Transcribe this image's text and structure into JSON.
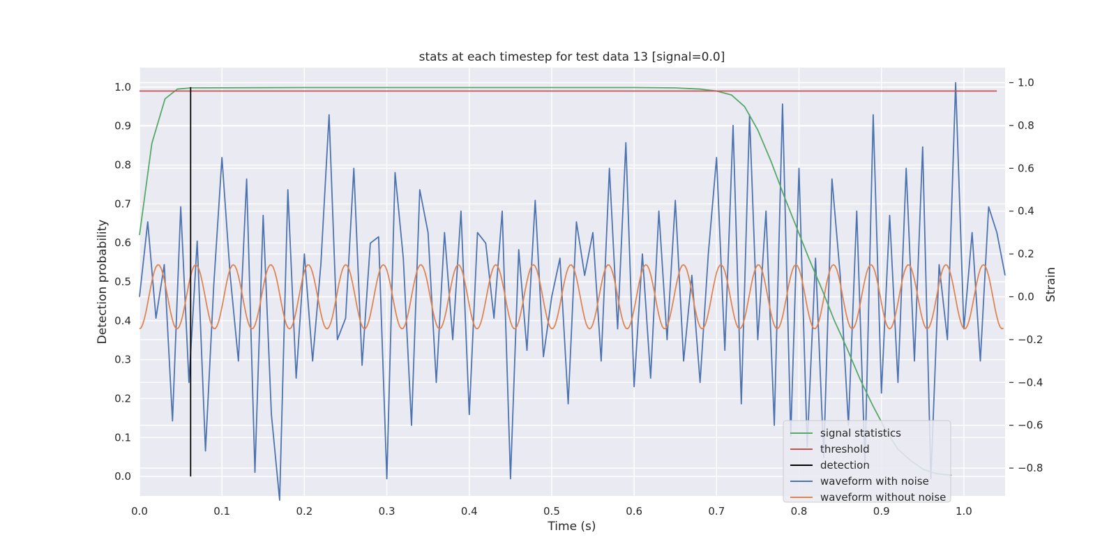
{
  "chart_data": {
    "type": "line",
    "title": "stats at each timestep for test data 13 [signal=0.0]",
    "xlabel": "Time (s)",
    "ylabel_left": "Detection probability",
    "ylabel_right": "Strain",
    "xlim": [
      0.0,
      1.05
    ],
    "ylim_left": [
      -0.05,
      1.05
    ],
    "ylim_right": [
      -0.93,
      1.07
    ],
    "x_ticks": [
      "0.0",
      "0.1",
      "0.2",
      "0.3",
      "0.4",
      "0.5",
      "0.6",
      "0.7",
      "0.8",
      "0.9",
      "1.0"
    ],
    "y_ticks_left": [
      "0.0",
      "0.1",
      "0.2",
      "0.3",
      "0.4",
      "0.5",
      "0.6",
      "0.7",
      "0.8",
      "0.9",
      "1.0"
    ],
    "y_ticks_right": [
      "−0.8",
      "−0.6",
      "−0.4",
      "−0.2",
      "0.0",
      "0.2",
      "0.4",
      "0.6",
      "0.8",
      "1.0"
    ],
    "grid": true,
    "legend_position": "bottom-right",
    "series": [
      {
        "name": "signal statistics",
        "axis": "left",
        "color": "#55a868",
        "x": [
          0.0,
          0.015,
          0.031,
          0.046,
          0.062,
          0.2,
          0.4,
          0.6,
          0.65,
          0.68,
          0.7,
          0.718,
          0.734,
          0.75,
          0.766,
          0.782,
          0.797,
          0.812,
          0.828,
          0.843,
          0.858,
          0.874,
          0.89,
          0.905,
          0.92,
          0.936,
          0.951,
          0.967,
          0.985
        ],
        "y": [
          0.62,
          0.855,
          0.97,
          0.995,
          0.998,
          0.999,
          0.999,
          0.999,
          0.998,
          0.995,
          0.99,
          0.98,
          0.95,
          0.89,
          0.81,
          0.72,
          0.64,
          0.56,
          0.48,
          0.4,
          0.33,
          0.25,
          0.18,
          0.12,
          0.07,
          0.04,
          0.018,
          0.007,
          0.003
        ]
      },
      {
        "name": "threshold",
        "axis": "left",
        "color": "#c44e52",
        "x": [
          0.0,
          1.04
        ],
        "y": [
          0.99,
          0.99
        ]
      },
      {
        "name": "detection",
        "axis": "left",
        "color": "#000000",
        "x": [
          0.062,
          0.062
        ],
        "y": [
          0.0,
          1.0
        ]
      },
      {
        "name": "waveform with noise",
        "axis": "right",
        "color": "#4c72b0",
        "x": [
          0.0,
          0.01,
          0.02,
          0.03,
          0.04,
          0.05,
          0.06,
          0.07,
          0.08,
          0.09,
          0.1,
          0.11,
          0.12,
          0.13,
          0.14,
          0.15,
          0.16,
          0.17,
          0.18,
          0.19,
          0.2,
          0.21,
          0.22,
          0.23,
          0.24,
          0.25,
          0.26,
          0.27,
          0.28,
          0.29,
          0.3,
          0.31,
          0.32,
          0.33,
          0.34,
          0.35,
          0.36,
          0.37,
          0.38,
          0.39,
          0.4,
          0.41,
          0.42,
          0.43,
          0.44,
          0.45,
          0.46,
          0.47,
          0.48,
          0.49,
          0.5,
          0.51,
          0.52,
          0.53,
          0.54,
          0.55,
          0.56,
          0.57,
          0.58,
          0.59,
          0.6,
          0.61,
          0.62,
          0.63,
          0.64,
          0.65,
          0.66,
          0.67,
          0.68,
          0.69,
          0.7,
          0.71,
          0.72,
          0.73,
          0.74,
          0.75,
          0.76,
          0.77,
          0.78,
          0.79,
          0.8,
          0.81,
          0.82,
          0.83,
          0.84,
          0.85,
          0.86,
          0.87,
          0.88,
          0.89,
          0.9,
          0.91,
          0.92,
          0.93,
          0.94,
          0.95,
          0.96,
          0.97,
          0.98,
          0.99,
          1.0,
          1.01,
          1.02,
          1.03,
          1.04,
          1.05
        ],
        "y": [
          0.0,
          0.35,
          -0.1,
          0.15,
          -0.58,
          0.42,
          -0.4,
          0.26,
          -0.72,
          0.05,
          0.65,
          0.1,
          -0.3,
          0.55,
          -0.82,
          0.38,
          -0.55,
          -0.95,
          0.5,
          -0.38,
          0.2,
          -0.3,
          0.15,
          0.85,
          -0.2,
          -0.1,
          0.6,
          -0.32,
          0.25,
          0.28,
          -0.85,
          0.58,
          0.18,
          -0.6,
          0.5,
          0.3,
          -0.4,
          0.3,
          -0.2,
          0.4,
          -0.55,
          0.3,
          0.25,
          -0.1,
          0.4,
          -0.85,
          0.22,
          -0.25,
          0.45,
          -0.28,
          0.0,
          0.18,
          -0.5,
          0.35,
          0.1,
          0.3,
          -0.3,
          0.6,
          -0.15,
          0.72,
          -0.42,
          0.2,
          -0.38,
          0.4,
          -0.2,
          0.45,
          -0.3,
          0.1,
          -0.4,
          0.2,
          0.65,
          -0.25,
          0.8,
          -0.5,
          0.85,
          -0.2,
          0.4,
          -0.6,
          0.9,
          -0.65,
          0.6,
          -0.7,
          0.18,
          -0.75,
          0.55,
          0.1,
          -0.6,
          0.4,
          -0.78,
          0.85,
          -0.45,
          0.38,
          -0.4,
          0.6,
          -0.3,
          0.7,
          -0.85,
          0.15,
          -0.2,
          1.0,
          -0.15,
          0.3,
          -0.3,
          0.42,
          0.3,
          0.1
        ]
      },
      {
        "name": "waveform without noise",
        "axis": "right",
        "color": "#dd8452",
        "amplitude": 0.15,
        "period_s": 0.0455
      }
    ]
  }
}
